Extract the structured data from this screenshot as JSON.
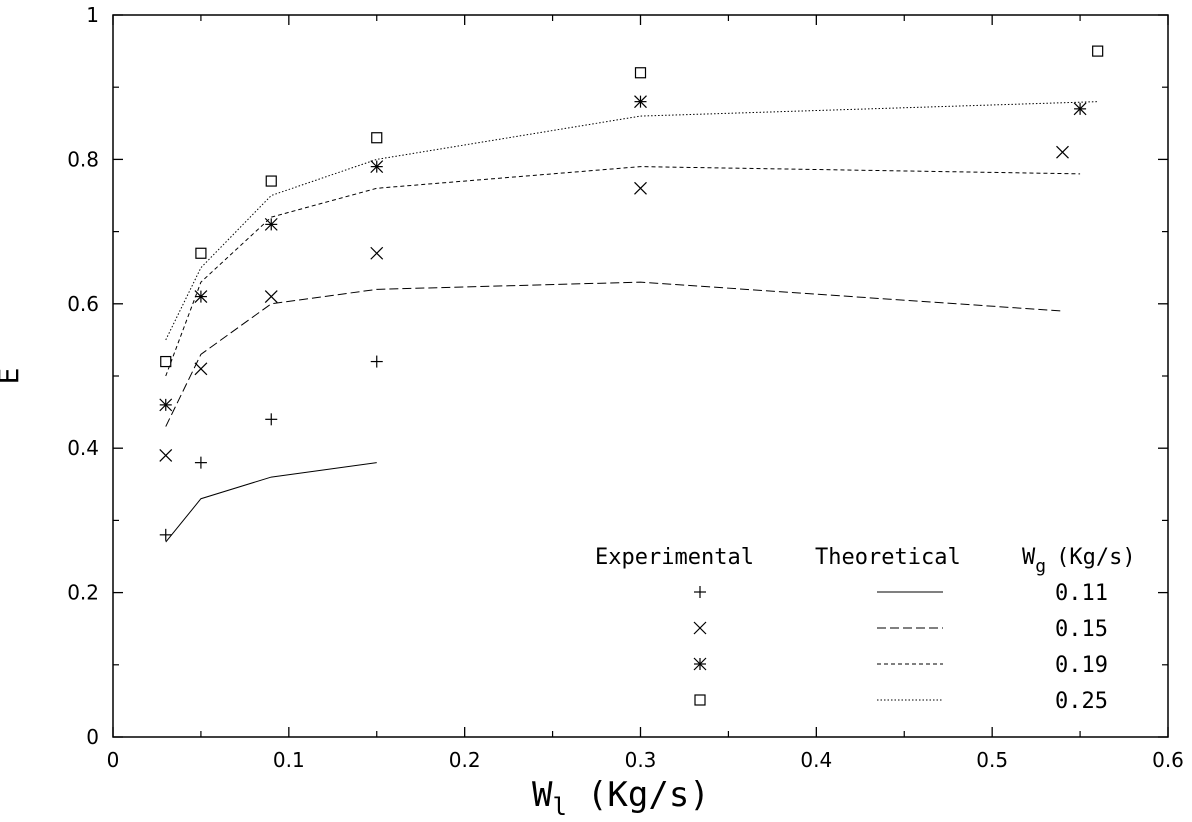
{
  "chart_data": {
    "type": "scatter",
    "title": "",
    "xlabel": {
      "main": "W",
      "sub": "l",
      "unit": "(Kg/s)"
    },
    "ylabel": "E",
    "xlim": [
      0,
      0.6
    ],
    "ylim": [
      0,
      1
    ],
    "xticks": [
      "0",
      "0.1",
      "0.2",
      "0.3",
      "0.4",
      "0.5",
      "0.6"
    ],
    "yticks": [
      "0",
      "0.2",
      "0.4",
      "0.6",
      "0.8",
      "1"
    ],
    "xtick_values": [
      0,
      0.1,
      0.2,
      0.3,
      0.4,
      0.5,
      0.6
    ],
    "ytick_values": [
      0,
      0.2,
      0.4,
      0.6,
      0.8,
      1.0
    ],
    "grid": false,
    "legend": {
      "position": "bottom-right",
      "header_experimental": "Experimental",
      "header_theoretical": "Theoretical",
      "header_wg_main": "W",
      "header_wg_sub": "g",
      "header_wg_unit": "(Kg/s)"
    },
    "series": [
      {
        "name": "0.11",
        "marker": "plus",
        "line_style": "solid",
        "experimental": {
          "x": [
            0.03,
            0.05,
            0.09,
            0.15
          ],
          "y": [
            0.28,
            0.38,
            0.44,
            0.52
          ]
        },
        "theoretical": {
          "x": [
            0.03,
            0.05,
            0.09,
            0.15
          ],
          "y": [
            0.27,
            0.33,
            0.36,
            0.38
          ]
        }
      },
      {
        "name": "0.15",
        "marker": "cross",
        "line_style": "dashed",
        "experimental": {
          "x": [
            0.03,
            0.05,
            0.09,
            0.15,
            0.3,
            0.54
          ],
          "y": [
            0.39,
            0.51,
            0.61,
            0.67,
            0.76,
            0.81
          ]
        },
        "theoretical": {
          "x": [
            0.03,
            0.05,
            0.09,
            0.15,
            0.3,
            0.54
          ],
          "y": [
            0.43,
            0.53,
            0.6,
            0.62,
            0.63,
            0.59
          ]
        }
      },
      {
        "name": "0.19",
        "marker": "star",
        "line_style": "short-dashed",
        "experimental": {
          "x": [
            0.03,
            0.05,
            0.09,
            0.15,
            0.3,
            0.55
          ],
          "y": [
            0.46,
            0.61,
            0.71,
            0.79,
            0.88,
            0.87
          ]
        },
        "theoretical": {
          "x": [
            0.03,
            0.05,
            0.09,
            0.15,
            0.3,
            0.55
          ],
          "y": [
            0.5,
            0.63,
            0.72,
            0.76,
            0.79,
            0.78
          ]
        }
      },
      {
        "name": "0.25",
        "marker": "square",
        "line_style": "dotted",
        "experimental": {
          "x": [
            0.03,
            0.05,
            0.09,
            0.15,
            0.3,
            0.56
          ],
          "y": [
            0.52,
            0.67,
            0.77,
            0.83,
            0.92,
            0.95
          ]
        },
        "theoretical": {
          "x": [
            0.03,
            0.05,
            0.09,
            0.15,
            0.3,
            0.56
          ],
          "y": [
            0.55,
            0.65,
            0.75,
            0.8,
            0.86,
            0.88
          ]
        }
      }
    ]
  }
}
